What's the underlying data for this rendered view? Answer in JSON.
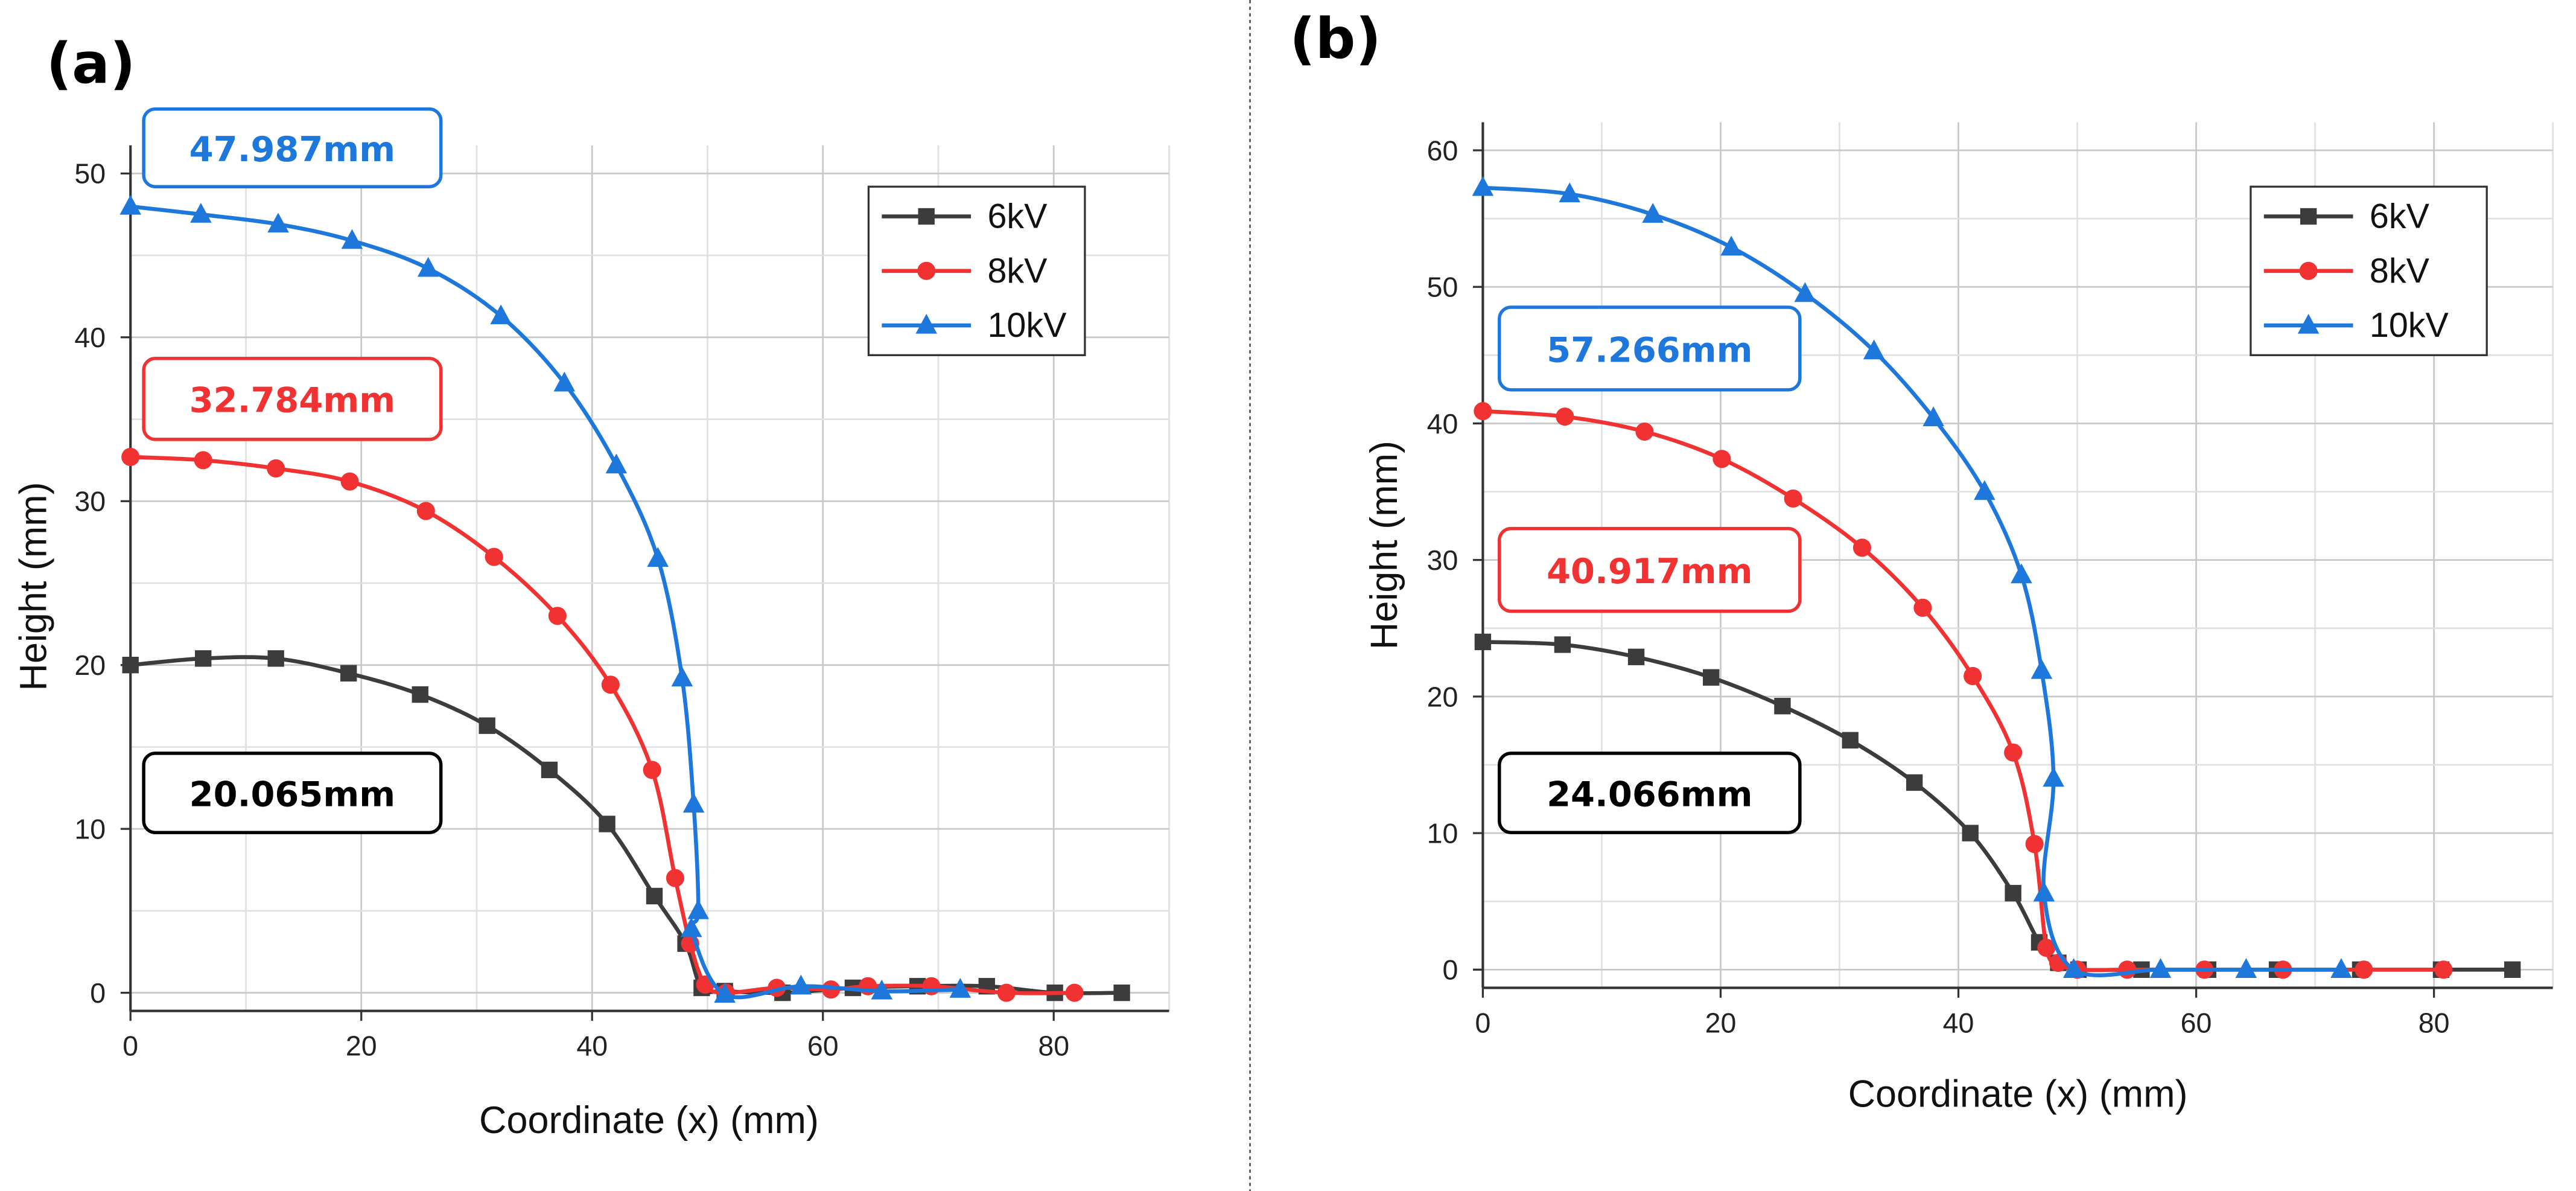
{
  "colors": {
    "6kV": "#3c3c3c",
    "8kV": "#f03232",
    "10kV": "#1e78dc",
    "grid": "#c8c8c8",
    "axis": "#333333",
    "divider": "#555555"
  },
  "chart_data": [
    {
      "type": "line",
      "panel_label": "(a)",
      "xlabel": "Coordinate (x) (mm)",
      "ylabel": "Height (mm)",
      "xlim": [
        0,
        90
      ],
      "ylim": [
        -1,
        50
      ],
      "xticks": [
        0,
        20,
        40,
        60,
        80
      ],
      "yticks": [
        0,
        10,
        20,
        30,
        40,
        50
      ],
      "grid": true,
      "legend": "top-right",
      "series": [
        {
          "name": "6kV",
          "color": "#3c3c3c",
          "marker": "square",
          "x": [
            0,
            6.3,
            12.6,
            18.9,
            25.1,
            30.9,
            36.3,
            41.3,
            45.4,
            48.1,
            49.5,
            51.5,
            56.5,
            62.6,
            68.2,
            74.2,
            80.1,
            85.9
          ],
          "y": [
            20.0,
            20.4,
            20.4,
            19.5,
            18.2,
            16.3,
            13.6,
            10.3,
            5.9,
            3.0,
            0.3,
            0.1,
            0.0,
            0.3,
            0.4,
            0.4,
            0.0,
            0.0
          ]
        },
        {
          "name": "8kV",
          "color": "#f03232",
          "marker": "circle",
          "x": [
            0,
            6.3,
            12.6,
            19.0,
            25.6,
            31.5,
            37.0,
            41.6,
            45.2,
            47.2,
            48.5,
            49.8,
            51.6,
            56.0,
            60.7,
            63.9,
            69.4,
            75.9,
            81.8
          ],
          "y": [
            32.7,
            32.5,
            32.0,
            31.2,
            29.4,
            26.6,
            23.0,
            18.8,
            13.6,
            7.0,
            3.0,
            0.5,
            0.0,
            0.3,
            0.2,
            0.4,
            0.4,
            0.0,
            0.0
          ]
        },
        {
          "name": "10kV",
          "color": "#1e78dc",
          "marker": "triangle",
          "x": [
            0,
            6.1,
            12.8,
            19.2,
            25.8,
            32.1,
            37.6,
            42.1,
            45.7,
            47.8,
            48.8,
            49.2,
            48.6,
            51.5,
            58.1,
            65.1,
            71.9
          ],
          "y": [
            47.987,
            47.5,
            46.9,
            45.9,
            44.2,
            41.3,
            37.2,
            32.2,
            26.5,
            19.2,
            11.5,
            5.0,
            3.9,
            -0.1,
            0.4,
            0.1,
            0.2
          ]
        }
      ],
      "annotations": [
        {
          "label": "47.987mm",
          "color": "#1e78dc"
        },
        {
          "label": "32.784mm",
          "color": "#f03232"
        },
        {
          "label": "20.065mm",
          "color": "#000000"
        }
      ]
    },
    {
      "type": "line",
      "panel_label": "(b)",
      "xlabel": "Coordinate (x) (mm)",
      "ylabel": "Height (mm)",
      "xlim": [
        0,
        90
      ],
      "ylim": [
        -1,
        62
      ],
      "xticks": [
        0,
        20,
        40,
        60,
        80
      ],
      "yticks": [
        0,
        10,
        20,
        30,
        40,
        50,
        60
      ],
      "grid": true,
      "legend": "top-right",
      "series": [
        {
          "name": "6kV",
          "color": "#3c3c3c",
          "marker": "square",
          "x": [
            0,
            6.7,
            12.9,
            19.2,
            25.2,
            30.9,
            36.3,
            41.0,
            44.6,
            46.8,
            48.4,
            50.1,
            55.4,
            61.0,
            66.8,
            73.8,
            80.6,
            86.6
          ],
          "y": [
            24.0,
            23.8,
            22.9,
            21.4,
            19.3,
            16.8,
            13.7,
            10.0,
            5.6,
            2.0,
            0.5,
            0.0,
            0.0,
            0.0,
            0.0,
            0.0,
            0.0,
            0.0
          ]
        },
        {
          "name": "8kV",
          "color": "#f03232",
          "marker": "circle",
          "x": [
            0,
            6.9,
            13.6,
            20.1,
            26.1,
            31.9,
            37.0,
            41.2,
            44.6,
            46.4,
            47.4,
            48.4,
            50.0,
            54.2,
            60.7,
            67.3,
            74.1,
            80.8
          ],
          "y": [
            40.9,
            40.5,
            39.4,
            37.4,
            34.5,
            30.9,
            26.5,
            21.5,
            15.9,
            9.2,
            1.6,
            0.5,
            0.0,
            0.0,
            0.0,
            0.0,
            0.0,
            0.0
          ]
        },
        {
          "name": "10kV",
          "color": "#1e78dc",
          "marker": "triangle",
          "x": [
            0,
            7.3,
            14.3,
            20.9,
            27.1,
            32.9,
            37.9,
            42.2,
            45.3,
            47.0,
            48.0,
            47.2,
            49.7,
            57.0,
            64.2,
            72.2
          ],
          "y": [
            57.266,
            56.8,
            55.3,
            52.9,
            49.5,
            45.3,
            40.4,
            35.0,
            28.9,
            21.9,
            14.0,
            5.6,
            0.0,
            0.0,
            0.0,
            0.0
          ]
        }
      ],
      "annotations": [
        {
          "label": "57.266mm",
          "color": "#1e78dc"
        },
        {
          "label": "40.917mm",
          "color": "#f03232"
        },
        {
          "label": "24.066mm",
          "color": "#000000"
        }
      ]
    }
  ]
}
